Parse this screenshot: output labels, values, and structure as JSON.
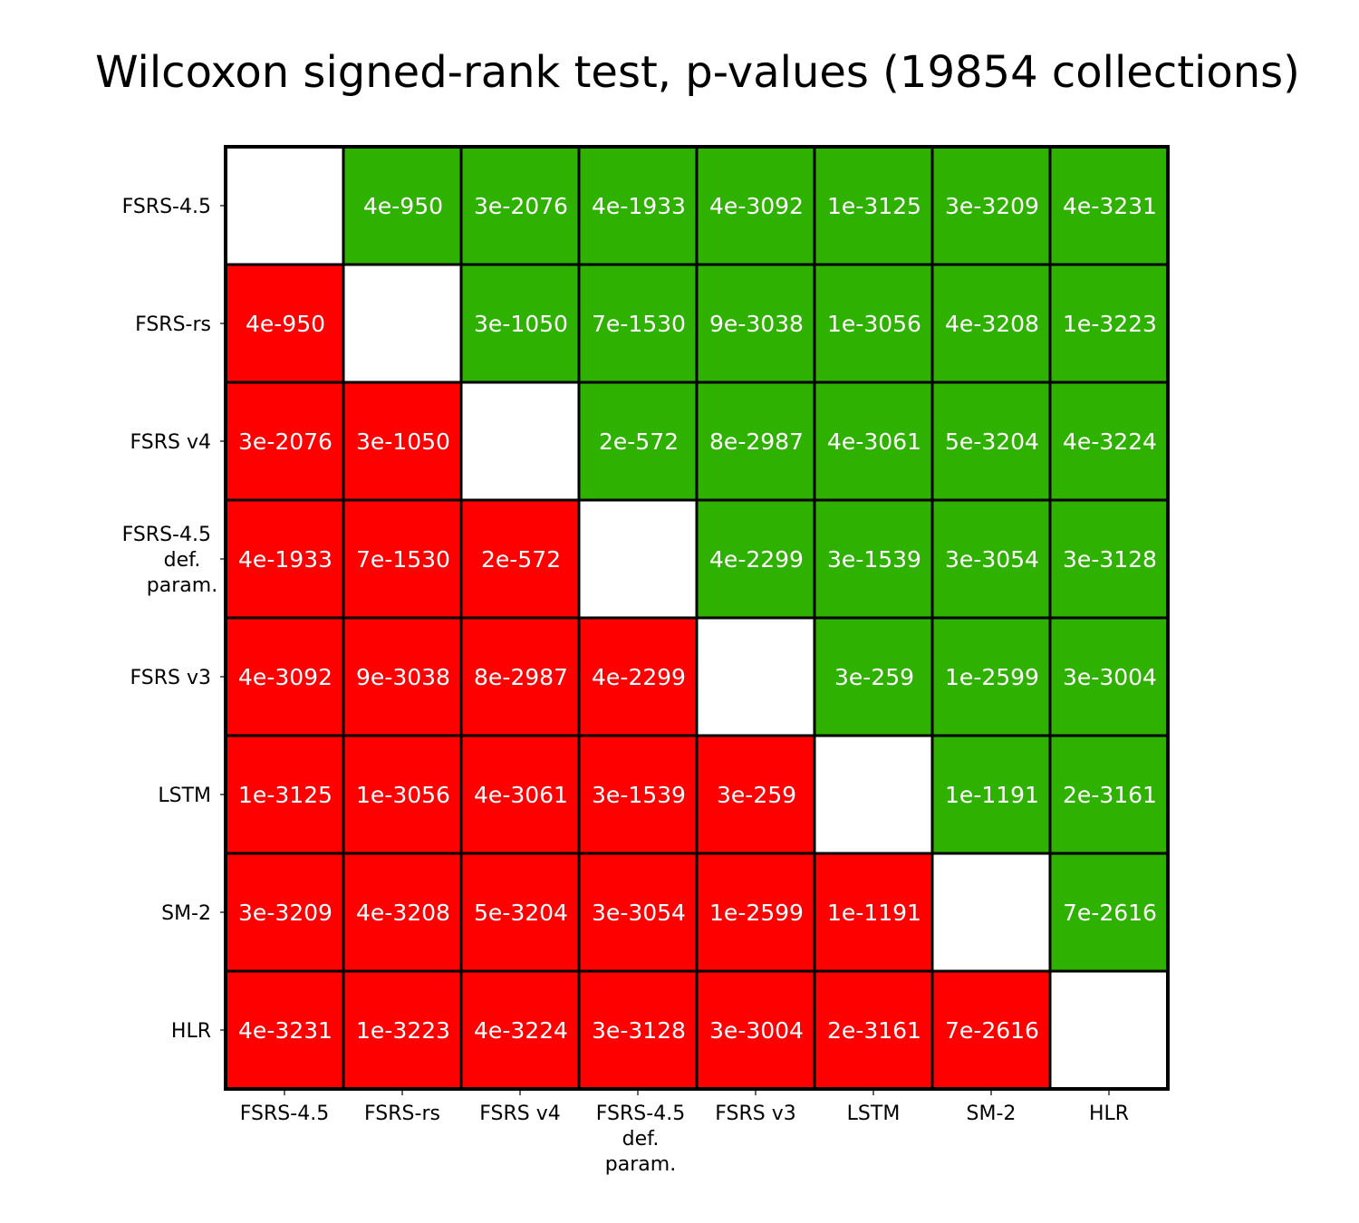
{
  "chart_data": {
    "type": "heatmap",
    "title": "Wilcoxon signed-rank test, p-values (19854 collections)",
    "xlabel": "",
    "ylabel": "",
    "rows": [
      "FSRS-4.5",
      "FSRS-rs",
      "FSRS v4",
      "FSRS-4.5\ndef.\nparam.",
      "FSRS v3",
      "LSTM",
      "SM-2",
      "HLR"
    ],
    "columns": [
      "FSRS-4.5",
      "FSRS-rs",
      "FSRS v4",
      "FSRS-4.5\ndef.\nparam.",
      "FSRS v3",
      "LSTM",
      "SM-2",
      "HLR"
    ],
    "values": [
      [
        "",
        "4e-950",
        "3e-2076",
        "4e-1933",
        "4e-3092",
        "1e-3125",
        "3e-3209",
        "4e-3231"
      ],
      [
        "4e-950",
        "",
        "3e-1050",
        "7e-1530",
        "9e-3038",
        "1e-3056",
        "4e-3208",
        "1e-3223"
      ],
      [
        "3e-2076",
        "3e-1050",
        "",
        "2e-572",
        "8e-2987",
        "4e-3061",
        "5e-3204",
        "4e-3224"
      ],
      [
        "4e-1933",
        "7e-1530",
        "2e-572",
        "",
        "4e-2299",
        "3e-1539",
        "3e-3054",
        "3e-3128"
      ],
      [
        "4e-3092",
        "9e-3038",
        "8e-2987",
        "4e-2299",
        "",
        "3e-259",
        "1e-2599",
        "3e-3004"
      ],
      [
        "1e-3125",
        "1e-3056",
        "4e-3061",
        "3e-1539",
        "3e-259",
        "",
        "1e-1191",
        "2e-3161"
      ],
      [
        "3e-3209",
        "4e-3208",
        "5e-3204",
        "3e-3054",
        "1e-2599",
        "1e-1191",
        "",
        "7e-2616"
      ],
      [
        "4e-3231",
        "1e-3223",
        "4e-3224",
        "3e-3128",
        "3e-3004",
        "2e-3161",
        "7e-2616",
        ""
      ]
    ],
    "colors": {
      "upper": "#2fb100",
      "lower": "#ff0000",
      "diagonal": "#ffffff",
      "cell_text": "#ffffff",
      "grid": "#000000"
    },
    "grid": true,
    "legend": "none"
  }
}
